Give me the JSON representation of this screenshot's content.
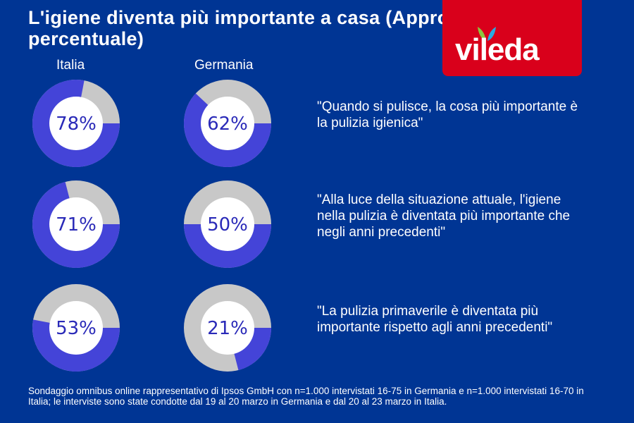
{
  "title": "L'igiene diventa più importante a casa (Approvazione in percentuale)",
  "logo": {
    "text": "vileda"
  },
  "colors": {
    "background": "#003594",
    "approval": "#4444d8",
    "rest": "#c8c8c8",
    "logo_bg": "#d9001b"
  },
  "chart_data": {
    "type": "pie",
    "style": "donut",
    "columns": [
      "Italia",
      "Germania"
    ],
    "rows": [
      {
        "statement": "\"Quando si pulisce, la cosa più importante è la pulizia igienica\"",
        "values": [
          78,
          62
        ]
      },
      {
        "statement": "\"Alla luce della situazione attuale, l'igiene nella pulizia è diventata più importante che negli anni precedenti\"",
        "values": [
          71,
          50
        ]
      },
      {
        "statement": "\"La pulizia primaverile è diventata più importante rispetto agli anni precedenti\"",
        "values": [
          53,
          21
        ]
      }
    ],
    "labels": [
      [
        "78%",
        "62%"
      ],
      [
        "71%",
        "50%"
      ],
      [
        "53%",
        "21%"
      ]
    ]
  },
  "footnote": "Sondaggio omnibus online rappresentativo di Ipsos GmbH con n=1.000 intervistati 16-75 in Germania e n=1.000 intervistati 16-70 in Italia; le interviste sono state condotte dal 19 al 20 marzo in Germania e dal 20 al 23 marzo in Italia."
}
